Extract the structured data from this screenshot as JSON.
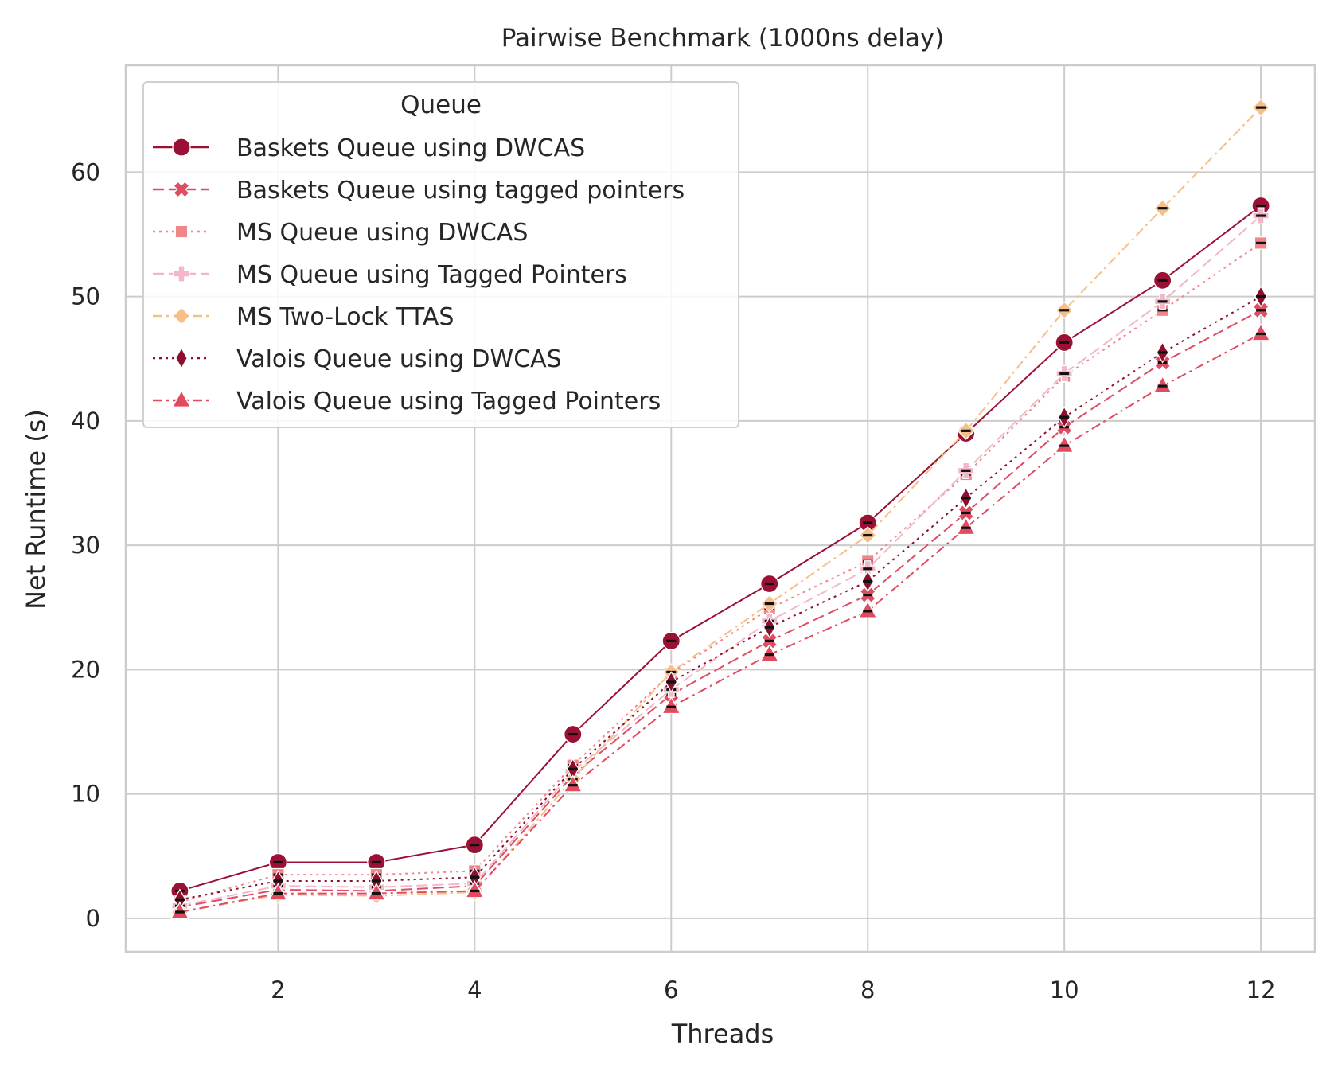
{
  "chart_data": {
    "type": "line",
    "title": "Pairwise Benchmark (1000ns delay)",
    "xlabel": "Threads",
    "ylabel": "Net Runtime (s)",
    "xlim": [
      0.45,
      12.55
    ],
    "ylim": [
      -2.7,
      68.6
    ],
    "xticks": [
      2,
      4,
      6,
      8,
      10,
      12
    ],
    "yticks": [
      0,
      10,
      20,
      30,
      40,
      50,
      60
    ],
    "grid": true,
    "legend": {
      "title": "Queue",
      "placement": "upper-left"
    },
    "x": [
      1,
      2,
      3,
      4,
      5,
      6,
      7,
      8,
      9,
      10,
      11,
      12
    ],
    "series": [
      {
        "name": "Baskets Queue using DWCAS",
        "color": "#9b1035",
        "line_style": "solid",
        "marker": "circle",
        "values": [
          2.2,
          4.5,
          4.5,
          5.9,
          14.8,
          22.3,
          26.9,
          31.8,
          39.0,
          46.3,
          51.3,
          57.3
        ]
      },
      {
        "name": "Baskets Queue using tagged pointers",
        "color": "#df4d63",
        "line_style": "dashed",
        "marker": "x-filled",
        "values": [
          0.9,
          2.3,
          2.2,
          2.6,
          11.5,
          18.0,
          22.3,
          26.0,
          32.6,
          39.5,
          44.7,
          48.9
        ]
      },
      {
        "name": "MS Queue using DWCAS",
        "color": "#ef868a",
        "line_style": "dotted",
        "marker": "square",
        "values": [
          1.3,
          3.5,
          3.5,
          3.8,
          12.3,
          19.7,
          24.9,
          28.7,
          35.7,
          43.6,
          48.9,
          54.3
        ]
      },
      {
        "name": "MS Queue using Tagged Pointers",
        "color": "#f3b7c9",
        "line_style": "dashed",
        "marker": "plus-filled",
        "values": [
          1.0,
          2.6,
          2.5,
          2.8,
          11.8,
          18.4,
          23.9,
          28.1,
          36.0,
          43.8,
          49.6,
          56.5
        ]
      },
      {
        "name": "MS Two-Lock TTAS",
        "color": "#f6bf88",
        "line_style": "dashdot",
        "marker": "diamond",
        "values": [
          0.5,
          1.9,
          1.8,
          2.1,
          11.2,
          19.8,
          25.3,
          30.8,
          39.2,
          48.9,
          57.1,
          65.2
        ]
      },
      {
        "name": "Valois Queue using DWCAS",
        "color": "#8c0f30",
        "line_style": "dotted",
        "marker": "thin-diamond",
        "values": [
          1.5,
          3.0,
          3.0,
          3.3,
          12.0,
          19.0,
          23.4,
          27.1,
          33.8,
          40.3,
          45.5,
          50.0
        ]
      },
      {
        "name": "Valois Queue using Tagged Pointers",
        "color": "#e24a60",
        "line_style": "dashdot",
        "marker": "triangle",
        "values": [
          0.5,
          2.0,
          2.0,
          2.2,
          10.7,
          17.0,
          21.2,
          24.7,
          31.4,
          38.0,
          42.8,
          47.0
        ]
      }
    ]
  }
}
